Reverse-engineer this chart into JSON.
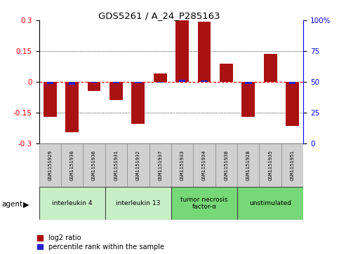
{
  "title": "GDS5261 / A_24_P285163",
  "samples": [
    "GSM1151929",
    "GSM1151930",
    "GSM1151936",
    "GSM1151931",
    "GSM1151932",
    "GSM1151937",
    "GSM1151933",
    "GSM1151934",
    "GSM1151938",
    "GSM1151928",
    "GSM1151935",
    "GSM1151951"
  ],
  "log2_ratio": [
    -0.17,
    -0.245,
    -0.045,
    -0.09,
    -0.205,
    0.04,
    0.3,
    0.295,
    0.09,
    -0.17,
    0.135,
    -0.215
  ],
  "percentile": [
    43,
    38,
    48,
    44,
    44,
    48,
    58,
    57,
    51,
    43,
    51,
    43
  ],
  "groups": [
    {
      "label": "interleukin 4",
      "start": 0,
      "end": 2,
      "color": "#c8f0c8"
    },
    {
      "label": "interleukin 13",
      "start": 3,
      "end": 5,
      "color": "#c8f0c8"
    },
    {
      "label": "tumor necrosis\nfactor-α",
      "start": 6,
      "end": 8,
      "color": "#76d876"
    },
    {
      "label": "unstimulated",
      "start": 9,
      "end": 11,
      "color": "#76d876"
    }
  ],
  "bar_color": "#aa1111",
  "pct_color": "#2222cc",
  "ylim": [
    -0.3,
    0.3
  ],
  "y2lim": [
    0,
    100
  ],
  "yticks": [
    -0.3,
    -0.15,
    0.0,
    0.15,
    0.3
  ],
  "y2ticks": [
    0,
    25,
    50,
    75,
    100
  ],
  "bar_width": 0.6,
  "pct_bar_width": 0.3,
  "agent_label": "agent",
  "legend_red": "log2 ratio",
  "legend_blue": "percentile rank within the sample"
}
